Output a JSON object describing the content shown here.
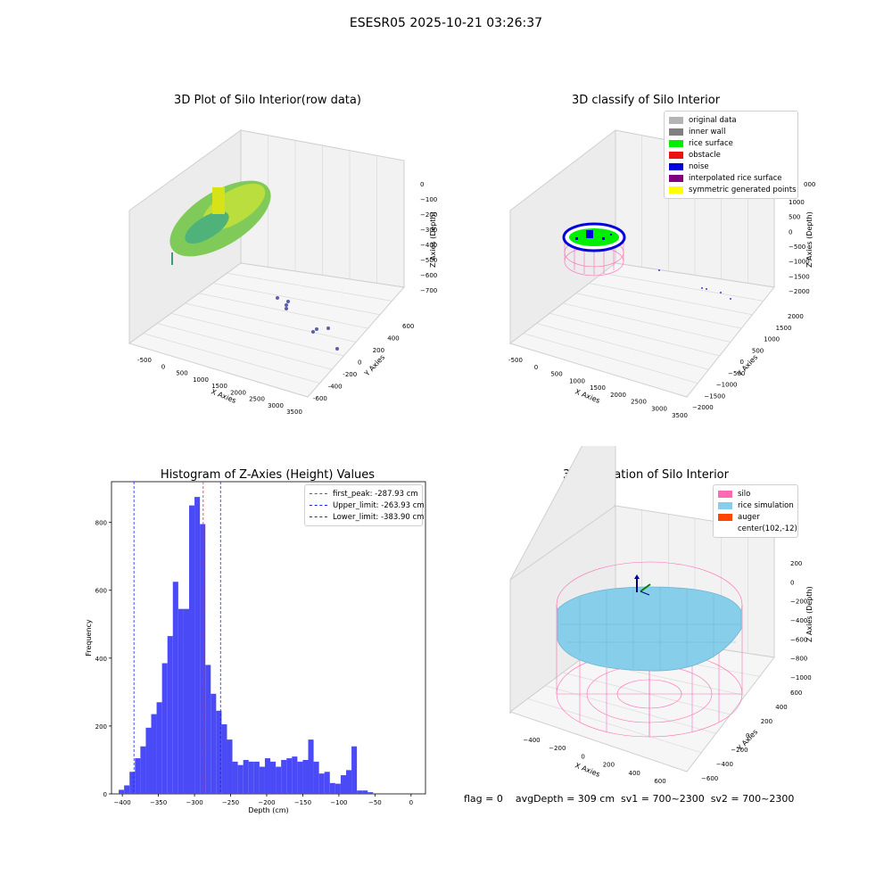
{
  "suptitle": "ESESR05 2025-10-21 03:26:37",
  "panels": {
    "raw": {
      "title": "3D Plot of Silo Interior(row data)",
      "xlabel": "X Axies",
      "ylabel": "Y Axies",
      "zlabel": "Z Axies (Depth)",
      "xticks": [
        "-500",
        "0",
        "500",
        "1000",
        "1500",
        "2000",
        "2500",
        "3000",
        "3500"
      ],
      "yticks": [
        "-600",
        "-400",
        "-200",
        "0",
        "200",
        "400",
        "600"
      ],
      "zticks": [
        "0",
        "−100",
        "−200",
        "−300",
        "−400",
        "−500",
        "−600",
        "−700"
      ]
    },
    "classify": {
      "title": "3D classify of Silo Interior",
      "xlabel": "X Axies",
      "ylabel": "Y Axies",
      "zlabel": "Z Axies (Depth)",
      "xticks": [
        "-500",
        "0",
        "500",
        "1000",
        "1500",
        "2000",
        "2500",
        "3000",
        "3500"
      ],
      "yticks": [
        "−2000",
        "−1500",
        "−1000",
        "−500",
        "0",
        "500",
        "1000",
        "1500",
        "2000"
      ],
      "zticks": [
        "1000",
        "500",
        "0",
        "−500",
        "−1000",
        "−1500",
        "−2000"
      ],
      "ztick_top": "000",
      "legend": [
        {
          "label": "original data",
          "color": "#b4b4b4"
        },
        {
          "label": "inner wall",
          "color": "#808080"
        },
        {
          "label": "rice surface",
          "color": "#00ee00"
        },
        {
          "label": "obstacle",
          "color": "#ee1111"
        },
        {
          "label": "noise",
          "color": "#0000dd"
        },
        {
          "label": "interpolated rice surface",
          "color": "#800080"
        },
        {
          "label": "symmetric generated points",
          "color": "#ffff00"
        }
      ]
    },
    "simulation": {
      "title": "3D simulation of Silo Interior",
      "xlabel": "X Axies",
      "ylabel": "Y Axies",
      "zlabel": "Z Axies (Depth)",
      "xticks": [
        "−400",
        "−200",
        "0",
        "200",
        "400",
        "600"
      ],
      "yticks": [
        "−600",
        "−400",
        "−200",
        "0",
        "200",
        "400",
        "600"
      ],
      "zticks": [
        "200",
        "0",
        "−200",
        "−400",
        "−600",
        "−800",
        "−1000"
      ],
      "legend": [
        {
          "label": "silo",
          "color": "#ff69b4"
        },
        {
          "label": "rice simulation",
          "color": "#87ceeb"
        },
        {
          "label": "auger",
          "color": "#ff4500"
        },
        {
          "label": "center(102,-12)",
          "color": "transparent"
        }
      ]
    }
  },
  "status_text": "flag = 0    avgDepth = 309 cm  sv1 = 700~2300  sv2 = 700~2300",
  "chart_data": [
    {
      "type": "bar",
      "title": "Histogram of Z-Axies (Height) Values",
      "xlabel": "Depth (cm)",
      "ylabel": "Frequency",
      "xlim": [
        -415,
        20
      ],
      "ylim": [
        0,
        920
      ],
      "bin_start": -405,
      "bin_width": 7.5,
      "values": [
        12,
        25,
        65,
        105,
        140,
        195,
        235,
        270,
        385,
        465,
        625,
        545,
        545,
        850,
        875,
        795,
        380,
        295,
        245,
        205,
        160,
        95,
        85,
        100,
        95,
        95,
        80,
        105,
        95,
        80,
        100,
        105,
        110,
        95,
        100,
        160,
        95,
        60,
        65,
        32,
        30,
        55,
        70,
        140,
        10,
        10,
        5
      ],
      "xticks": [
        "−400",
        "−350",
        "−300",
        "−250",
        "−200",
        "−150",
        "−100",
        "−50",
        "0"
      ],
      "yticks": [
        "0",
        "200",
        "400",
        "600",
        "800"
      ],
      "bar_color": "#4a4af7",
      "vlines": [
        {
          "label": "first_peak: -287.93 cm",
          "x": -287.93,
          "color": "#ff2020"
        },
        {
          "label": "Upper_limit: -263.93 cm",
          "x": -263.93,
          "color": "#2020ff"
        },
        {
          "label": "Lower_limit: -383.90 cm",
          "x": -383.9,
          "color": "#2020ff"
        }
      ],
      "legend_position": "top-right"
    }
  ]
}
